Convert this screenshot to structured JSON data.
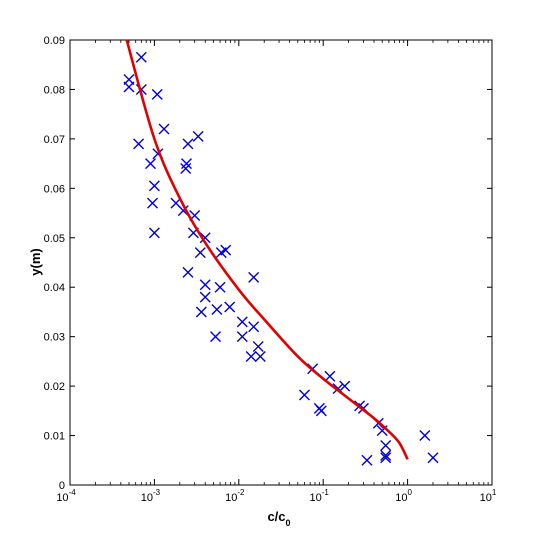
{
  "chart_data": {
    "type": "scatter",
    "title": "",
    "xlabel": "c/c",
    "xlabel_subscript": "0",
    "ylabel": "y(m)",
    "xscale": "log",
    "xlim": [
      0.0001,
      10
    ],
    "ylim": [
      0,
      0.09
    ],
    "x_ticks": [
      {
        "base": "10",
        "exp": "-4"
      },
      {
        "base": "10",
        "exp": "-3"
      },
      {
        "base": "10",
        "exp": "-2"
      },
      {
        "base": "10",
        "exp": "-1"
      },
      {
        "base": "10",
        "exp": "0"
      },
      {
        "base": "10",
        "exp": "1"
      }
    ],
    "y_ticks": [
      "0",
      "0.01",
      "0.02",
      "0.03",
      "0.04",
      "0.05",
      "0.06",
      "0.07",
      "0.08",
      "0.09"
    ],
    "grid": false,
    "legend": "none",
    "series": [
      {
        "type": "scatter",
        "marker": "x",
        "color": "#0000d8",
        "points": [
          [
            0.0007,
            0.0865
          ],
          [
            0.0005,
            0.082
          ],
          [
            0.0005,
            0.0805
          ],
          [
            0.0007,
            0.08
          ],
          [
            0.00108,
            0.079
          ],
          [
            0.0013,
            0.072
          ],
          [
            0.00065,
            0.069
          ],
          [
            0.0033,
            0.0705
          ],
          [
            0.0025,
            0.069
          ],
          [
            0.0011,
            0.067
          ],
          [
            0.0009,
            0.065
          ],
          [
            0.0024,
            0.065
          ],
          [
            0.00235,
            0.064
          ],
          [
            0.001,
            0.0605
          ],
          [
            0.00095,
            0.057
          ],
          [
            0.0018,
            0.057
          ],
          [
            0.0022,
            0.0555
          ],
          [
            0.003,
            0.0545
          ],
          [
            0.001,
            0.051
          ],
          [
            0.0029,
            0.051
          ],
          [
            0.004,
            0.05
          ],
          [
            0.0062,
            0.047
          ],
          [
            0.0035,
            0.047
          ],
          [
            0.007,
            0.0475
          ],
          [
            0.0025,
            0.043
          ],
          [
            0.015,
            0.042
          ],
          [
            0.004,
            0.0405
          ],
          [
            0.006,
            0.04
          ],
          [
            0.004,
            0.038
          ],
          [
            0.0055,
            0.0355
          ],
          [
            0.0078,
            0.036
          ],
          [
            0.0036,
            0.035
          ],
          [
            0.011,
            0.033
          ],
          [
            0.015,
            0.032
          ],
          [
            0.0053,
            0.03
          ],
          [
            0.011,
            0.03
          ],
          [
            0.017,
            0.028
          ],
          [
            0.014,
            0.026
          ],
          [
            0.018,
            0.026
          ],
          [
            0.075,
            0.0235
          ],
          [
            0.12,
            0.022
          ],
          [
            0.18,
            0.02
          ],
          [
            0.15,
            0.0195
          ],
          [
            0.06,
            0.0182
          ],
          [
            0.09,
            0.0155
          ],
          [
            0.095,
            0.015
          ],
          [
            0.27,
            0.016
          ],
          [
            0.3,
            0.0155
          ],
          [
            0.45,
            0.0125
          ],
          [
            0.5,
            0.011
          ],
          [
            1.6,
            0.01
          ],
          [
            0.55,
            0.008
          ],
          [
            0.55,
            0.006
          ],
          [
            0.55,
            0.0055
          ],
          [
            0.33,
            0.005
          ],
          [
            2.0,
            0.0055
          ]
        ]
      },
      {
        "type": "line",
        "color": "#e00000",
        "points": [
          [
            0.00047,
            0.09
          ],
          [
            0.001,
            0.07
          ],
          [
            0.002,
            0.058
          ],
          [
            0.004,
            0.049
          ],
          [
            0.01,
            0.0395
          ],
          [
            0.02,
            0.0335
          ],
          [
            0.05,
            0.026
          ],
          [
            0.1,
            0.0215
          ],
          [
            0.2,
            0.0175
          ],
          [
            0.4,
            0.0135
          ],
          [
            0.6,
            0.0108
          ],
          [
            0.8,
            0.0085
          ],
          [
            1.0,
            0.0052
          ]
        ]
      }
    ]
  }
}
